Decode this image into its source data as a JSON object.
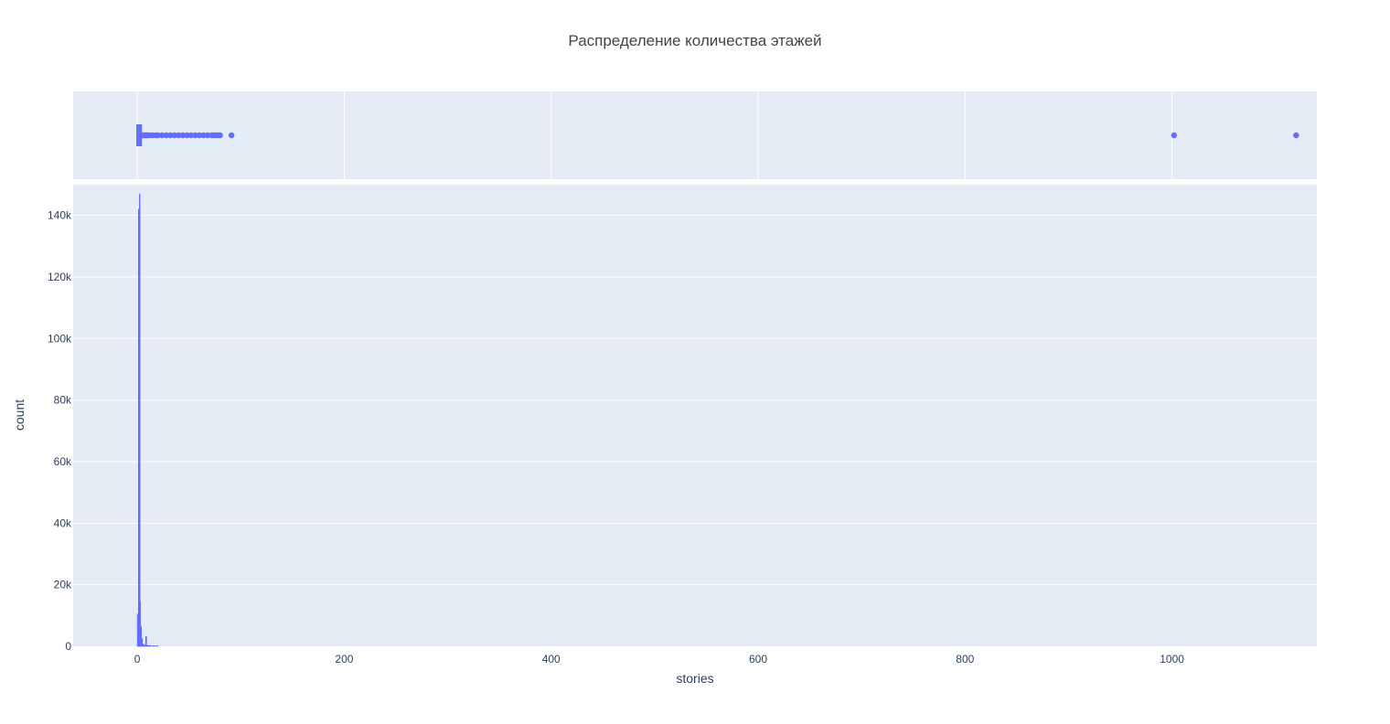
{
  "chart_data": {
    "type": "histogram",
    "title": "Распределение количества этажей",
    "xlabel": "stories",
    "ylabel": "count",
    "x_range": [
      -62,
      1140
    ],
    "y_range": [
      0,
      150000
    ],
    "x_ticks": [
      0,
      200,
      400,
      600,
      800,
      1000
    ],
    "x_tick_labels": [
      "0",
      "200",
      "400",
      "600",
      "800",
      "1000"
    ],
    "y_ticks": [
      0,
      20000,
      40000,
      60000,
      80000,
      100000,
      120000,
      140000
    ],
    "y_tick_labels": [
      "0",
      "20k",
      "40k",
      "60k",
      "80k",
      "100k",
      "120k",
      "140k"
    ],
    "grid": true,
    "legend": "none",
    "colors": {
      "series": "#636efa",
      "plot_bg": "#e5ecf6",
      "grid": "#ffffff",
      "text": "#2a3f5f",
      "title": "#444444"
    },
    "histogram": {
      "bins": [
        {
          "x0": 0.0,
          "x1": 0.5,
          "count": 10500
        },
        {
          "x0": 0.5,
          "x1": 1.0,
          "count": 3000
        },
        {
          "x0": 1.0,
          "x1": 1.5,
          "count": 142000
        },
        {
          "x0": 1.5,
          "x1": 2.0,
          "count": 500
        },
        {
          "x0": 2.0,
          "x1": 2.5,
          "count": 147000
        },
        {
          "x0": 2.5,
          "x1": 3.0,
          "count": 14500
        },
        {
          "x0": 3.0,
          "x1": 4.0,
          "count": 6500
        },
        {
          "x0": 4.0,
          "x1": 5.0,
          "count": 2500
        },
        {
          "x0": 5.0,
          "x1": 6.0,
          "count": 800
        },
        {
          "x0": 6.0,
          "x1": 8.0,
          "count": 400
        },
        {
          "x0": 8.0,
          "x1": 9.0,
          "count": 3200
        },
        {
          "x0": 9.0,
          "x1": 12.0,
          "count": 300
        },
        {
          "x0": 12.0,
          "x1": 20.0,
          "count": 150
        }
      ]
    },
    "box": {
      "q1": 1,
      "median": 2,
      "q3": 2,
      "whisker_low": 0,
      "whisker_high": 3,
      "outliers": [
        4,
        5,
        6,
        7,
        8,
        9,
        10,
        12,
        15,
        18,
        20,
        24,
        28,
        32,
        36,
        40,
        44,
        48,
        52,
        56,
        60,
        64,
        68,
        72,
        74,
        76,
        78,
        80,
        91,
        1002,
        1120
      ]
    }
  }
}
